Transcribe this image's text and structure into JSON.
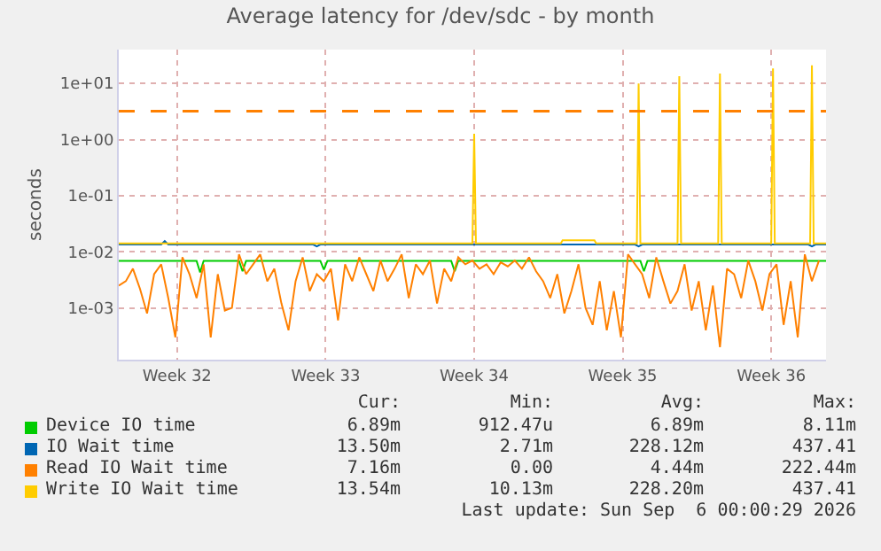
{
  "chart_data": {
    "type": "line",
    "title": "Average latency for /dev/sdc - by month",
    "ylabel": "seconds",
    "log": "y",
    "grid": true,
    "legend": "bottom",
    "line_style": "solid",
    "marker": "none",
    "xlim": [
      "2026-08-03T18:00",
      "2026-09-06T02:00"
    ],
    "xticks": [
      {
        "value": "2026-08-06T12:00",
        "label": "Week 32"
      },
      {
        "value": "2026-08-13T12:00",
        "label": "Week 33"
      },
      {
        "value": "2026-08-20T12:00",
        "label": "Week 34"
      },
      {
        "value": "2026-08-27T12:00",
        "label": "Week 35"
      },
      {
        "value": "2026-09-03T12:00",
        "label": "Week 36"
      }
    ],
    "ylim": [
      0.00012,
      40
    ],
    "yticks": [
      {
        "value": 0.001,
        "label": "1e-03"
      },
      {
        "value": 0.01,
        "label": "1e-02"
      },
      {
        "value": 0.1,
        "label": "1e-01"
      },
      {
        "value": 1,
        "label": "1e+00"
      },
      {
        "value": 10,
        "label": "1e+01"
      }
    ],
    "x": [
      "2026-08-03T18:00",
      "2026-08-04T02:00",
      "2026-08-04T10:00",
      "2026-08-04T18:00",
      "2026-08-05T02:00",
      "2026-08-05T10:00",
      "2026-08-05T18:00",
      "2026-08-06T02:00",
      "2026-08-06T10:00",
      "2026-08-06T18:00",
      "2026-08-07T02:00",
      "2026-08-07T10:00",
      "2026-08-07T18:00",
      "2026-08-08T02:00",
      "2026-08-08T10:00",
      "2026-08-08T18:00",
      "2026-08-09T02:00",
      "2026-08-09T10:00",
      "2026-08-09T18:00",
      "2026-08-10T02:00",
      "2026-08-10T10:00",
      "2026-08-10T18:00",
      "2026-08-11T02:00",
      "2026-08-11T10:00",
      "2026-08-11T18:00",
      "2026-08-12T02:00",
      "2026-08-12T10:00",
      "2026-08-12T18:00",
      "2026-08-13T02:00",
      "2026-08-13T10:00",
      "2026-08-13T18:00",
      "2026-08-14T02:00",
      "2026-08-14T10:00",
      "2026-08-14T18:00",
      "2026-08-15T02:00",
      "2026-08-15T10:00",
      "2026-08-15T18:00",
      "2026-08-16T02:00",
      "2026-08-16T10:00",
      "2026-08-16T18:00",
      "2026-08-17T02:00",
      "2026-08-17T10:00",
      "2026-08-17T18:00",
      "2026-08-18T02:00",
      "2026-08-18T10:00",
      "2026-08-18T18:00",
      "2026-08-19T02:00",
      "2026-08-19T10:00",
      "2026-08-19T18:00",
      "2026-08-20T02:00",
      "2026-08-20T10:00",
      "2026-08-20T18:00",
      "2026-08-21T02:00",
      "2026-08-21T10:00",
      "2026-08-21T18:00",
      "2026-08-22T02:00",
      "2026-08-22T10:00",
      "2026-08-22T18:00",
      "2026-08-23T02:00",
      "2026-08-23T10:00",
      "2026-08-23T18:00",
      "2026-08-24T02:00",
      "2026-08-24T10:00",
      "2026-08-24T18:00",
      "2026-08-25T02:00",
      "2026-08-25T10:00",
      "2026-08-25T18:00",
      "2026-08-26T02:00",
      "2026-08-26T10:00",
      "2026-08-26T18:00",
      "2026-08-27T02:00",
      "2026-08-27T10:00",
      "2026-08-27T18:00",
      "2026-08-28T02:00",
      "2026-08-28T10:00",
      "2026-08-28T18:00",
      "2026-08-29T02:00",
      "2026-08-29T10:00",
      "2026-08-29T18:00",
      "2026-08-30T02:00",
      "2026-08-30T10:00",
      "2026-08-30T18:00",
      "2026-08-31T02:00",
      "2026-08-31T10:00",
      "2026-08-31T18:00",
      "2026-09-01T02:00",
      "2026-09-01T10:00",
      "2026-09-01T18:00",
      "2026-09-02T02:00",
      "2026-09-02T10:00",
      "2026-09-02T18:00",
      "2026-09-03T02:00",
      "2026-09-03T10:00",
      "2026-09-03T18:00",
      "2026-09-04T02:00",
      "2026-09-04T10:00",
      "2026-09-04T18:00",
      "2026-09-05T02:00",
      "2026-09-05T10:00",
      "2026-09-05T18:00"
    ],
    "series": [
      {
        "name": "Device IO time",
        "color": "#00cc00",
        "x": [
          "2026-08-03T18:00",
          "2026-08-07T10:00",
          "2026-08-07T14:00",
          "2026-08-07T18:00",
          "2026-08-09T10:00",
          "2026-08-09T14:00",
          "2026-08-09T18:00",
          "2026-08-13T06:00",
          "2026-08-13T10:00",
          "2026-08-13T14:00",
          "2026-08-19T10:00",
          "2026-08-19T14:00",
          "2026-08-19T18:00",
          "2026-08-28T08:00",
          "2026-08-28T12:00",
          "2026-08-28T16:00",
          "2026-09-06T02:00"
        ],
        "values": [
          0.0069,
          0.0069,
          0.0043,
          0.0069,
          0.0069,
          0.0045,
          0.0069,
          0.0069,
          0.0048,
          0.0069,
          0.0069,
          0.0045,
          0.0069,
          0.0069,
          0.0045,
          0.0069,
          0.0069
        ]
      },
      {
        "name": "IO Wait time",
        "color": "#0066b3",
        "x": [
          "2026-08-03T18:00",
          "2026-08-05T18:00",
          "2026-08-05T22:00",
          "2026-08-06T02:00",
          "2026-08-12T22:00",
          "2026-08-13T02:00",
          "2026-08-13T06:00",
          "2026-08-28T02:00",
          "2026-08-28T06:00",
          "2026-08-28T10:00",
          "2026-09-05T06:00",
          "2026-09-05T10:00",
          "2026-09-05T14:00",
          "2026-09-06T02:00"
        ],
        "values": [
          0.0135,
          0.0135,
          0.0155,
          0.0135,
          0.0135,
          0.0125,
          0.0135,
          0.0135,
          0.0125,
          0.0135,
          0.0135,
          0.0125,
          0.0135,
          0.0135
        ]
      },
      {
        "name": "Read IO Wait time",
        "color": "#ff8000",
        "values": [
          0.0025,
          0.003,
          0.005,
          0.0022,
          0.0008,
          0.004,
          0.006,
          0.0015,
          0.0003,
          0.008,
          0.004,
          0.0015,
          0.006,
          0.0003,
          0.004,
          0.0009,
          0.001,
          0.009,
          0.004,
          0.006,
          0.009,
          0.003,
          0.005,
          0.0012,
          0.0004,
          0.003,
          0.008,
          0.002,
          0.004,
          0.003,
          0.005,
          0.0006,
          0.006,
          0.003,
          0.008,
          0.004,
          0.002,
          0.007,
          0.003,
          0.005,
          0.009,
          0.0015,
          0.006,
          0.004,
          0.007,
          0.0012,
          0.005,
          0.003,
          0.008,
          0.006,
          0.007,
          0.005,
          0.006,
          0.004,
          0.0065,
          0.0055,
          0.007,
          0.005,
          0.008,
          0.0045,
          0.003,
          0.0015,
          0.004,
          0.0008,
          0.002,
          0.006,
          0.001,
          0.0005,
          0.003,
          0.0004,
          0.002,
          0.0003,
          0.009,
          0.006,
          0.004,
          0.0015,
          0.008,
          0.003,
          0.0012,
          0.002,
          0.006,
          0.0009,
          0.003,
          0.0004,
          0.0025,
          0.0002,
          0.005,
          0.004,
          0.0015,
          0.007,
          0.003,
          0.0009,
          0.004,
          0.006,
          0.0005,
          0.003,
          0.0003,
          0.009,
          0.003,
          0.007
        ]
      },
      {
        "name": "Write IO Wait time",
        "color": "#ffcc00",
        "x": [
          "2026-08-03T18:00",
          "2026-08-20T10:00",
          "2026-08-20T12:00",
          "2026-08-20T14:00",
          "2026-08-24T14:00",
          "2026-08-24T16:00",
          "2026-08-26T04:00",
          "2026-08-26T06:00",
          "2026-08-28T04:00",
          "2026-08-28T06:00",
          "2026-08-28T08:00",
          "2026-08-30T02:00",
          "2026-08-30T04:00",
          "2026-08-30T06:00",
          "2026-09-01T00:00",
          "2026-09-01T02:00",
          "2026-09-01T04:00",
          "2026-09-03T12:00",
          "2026-09-03T14:00",
          "2026-09-03T16:00",
          "2026-09-05T08:00",
          "2026-09-05T10:00",
          "2026-09-05T12:00",
          "2026-09-06T02:00"
        ],
        "values": [
          0.0141,
          0.0141,
          1.27,
          0.0141,
          0.0141,
          0.016,
          0.016,
          0.0141,
          0.0141,
          10,
          0.0141,
          0.0141,
          13.4,
          0.0141,
          0.0141,
          15,
          0.0141,
          0.0141,
          18.5,
          0.0141,
          0.0141,
          21,
          0.0141,
          0.0141
        ]
      }
    ],
    "ref_lines": [
      {
        "axis": "y",
        "value": 3.2,
        "color": "#ff8000",
        "line_style": "dashed"
      }
    ],
    "annotations": [
      "Cur:",
      "Min:",
      "Avg:",
      "Max:",
      "6.89m",
      "912.47u",
      "6.89m",
      "8.11m",
      "13.50m",
      "2.71m",
      "228.12m",
      "437.41",
      "7.16m",
      "0.00",
      "4.44m",
      "222.44m",
      "13.54m",
      "10.13m",
      "228.20m",
      "437.41",
      "Last update: Sun Sep  6 00:00:29 2026"
    ]
  }
}
